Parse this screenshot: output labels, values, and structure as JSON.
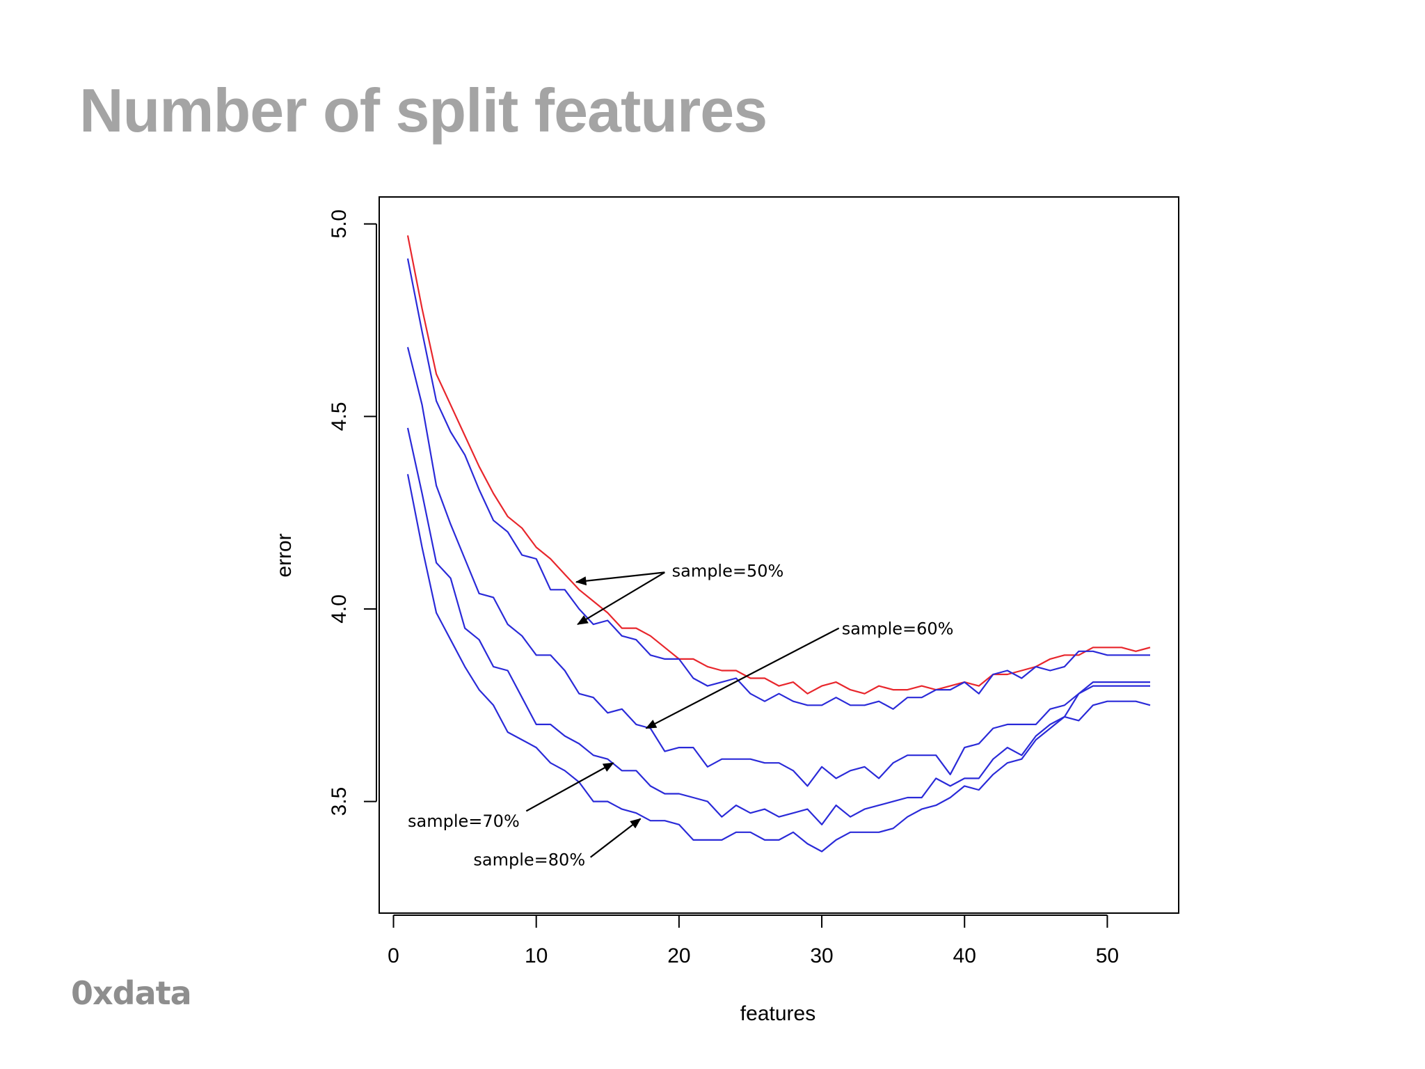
{
  "slide": {
    "title": "Number of split features",
    "logo_text": "0xdata"
  },
  "chart_data": {
    "type": "line",
    "xlabel": "features",
    "ylabel": "error",
    "xlim": [
      -1,
      55
    ],
    "ylim": [
      3.21,
      5.07
    ],
    "xticks": [
      0,
      10,
      20,
      30,
      40,
      50
    ],
    "yticks": [
      3.5,
      4.0,
      4.5,
      5.0
    ],
    "grid": false,
    "colors": {
      "highlight": "#e8262c",
      "series": "#2a2ad8",
      "axis": "#000000"
    },
    "x": [
      1,
      2,
      3,
      4,
      5,
      6,
      7,
      8,
      9,
      10,
      11,
      12,
      13,
      14,
      15,
      16,
      17,
      18,
      19,
      20,
      21,
      22,
      23,
      24,
      25,
      26,
      27,
      28,
      29,
      30,
      31,
      32,
      33,
      34,
      35,
      36,
      37,
      38,
      39,
      40,
      41,
      42,
      43,
      44,
      45,
      46,
      47,
      48,
      49,
      50,
      51,
      52,
      53
    ],
    "series": [
      {
        "color": "#e8262c",
        "values": [
          4.97,
          4.78,
          4.61,
          4.53,
          4.45,
          4.37,
          4.3,
          4.24,
          4.21,
          4.16,
          4.13,
          4.09,
          4.05,
          4.02,
          3.99,
          3.95,
          3.95,
          3.93,
          3.9,
          3.87,
          3.87,
          3.85,
          3.84,
          3.84,
          3.82,
          3.82,
          3.8,
          3.81,
          3.78,
          3.8,
          3.81,
          3.79,
          3.78,
          3.8,
          3.79,
          3.79,
          3.8,
          3.79,
          3.8,
          3.81,
          3.8,
          3.83,
          3.83,
          3.84,
          3.85,
          3.87,
          3.88,
          3.88,
          3.9,
          3.9,
          3.9,
          3.89,
          3.9
        ]
      },
      {
        "color": "#2a2ad8",
        "values": [
          4.91,
          4.72,
          4.54,
          4.46,
          4.4,
          4.31,
          4.23,
          4.2,
          4.14,
          4.13,
          4.05,
          4.05,
          4.0,
          3.96,
          3.97,
          3.93,
          3.92,
          3.88,
          3.87,
          3.87,
          3.82,
          3.8,
          3.81,
          3.82,
          3.78,
          3.76,
          3.78,
          3.76,
          3.75,
          3.75,
          3.77,
          3.75,
          3.75,
          3.76,
          3.74,
          3.77,
          3.77,
          3.79,
          3.79,
          3.81,
          3.78,
          3.83,
          3.84,
          3.82,
          3.85,
          3.84,
          3.85,
          3.89,
          3.89,
          3.88,
          3.88,
          3.88,
          3.88
        ]
      },
      {
        "color": "#2a2ad8",
        "values": [
          4.68,
          4.53,
          4.32,
          4.22,
          4.13,
          4.04,
          4.03,
          3.96,
          3.93,
          3.88,
          3.88,
          3.84,
          3.78,
          3.77,
          3.73,
          3.74,
          3.7,
          3.69,
          3.63,
          3.64,
          3.64,
          3.59,
          3.61,
          3.61,
          3.61,
          3.6,
          3.6,
          3.58,
          3.54,
          3.59,
          3.56,
          3.58,
          3.59,
          3.56,
          3.6,
          3.62,
          3.62,
          3.62,
          3.57,
          3.64,
          3.65,
          3.69,
          3.7,
          3.7,
          3.7,
          3.74,
          3.75,
          3.78,
          3.81,
          3.81,
          3.81,
          3.81,
          3.81
        ]
      },
      {
        "color": "#2a2ad8",
        "values": [
          4.47,
          4.3,
          4.12,
          4.08,
          3.95,
          3.92,
          3.85,
          3.84,
          3.77,
          3.7,
          3.7,
          3.67,
          3.65,
          3.62,
          3.61,
          3.58,
          3.58,
          3.54,
          3.52,
          3.52,
          3.51,
          3.5,
          3.46,
          3.49,
          3.47,
          3.48,
          3.46,
          3.47,
          3.48,
          3.44,
          3.49,
          3.46,
          3.48,
          3.49,
          3.5,
          3.51,
          3.51,
          3.56,
          3.54,
          3.56,
          3.56,
          3.61,
          3.64,
          3.62,
          3.67,
          3.7,
          3.72,
          3.78,
          3.8,
          3.8,
          3.8,
          3.8,
          3.8
        ]
      },
      {
        "color": "#2a2ad8",
        "values": [
          4.35,
          4.16,
          3.99,
          3.92,
          3.85,
          3.79,
          3.75,
          3.68,
          3.66,
          3.64,
          3.6,
          3.58,
          3.55,
          3.5,
          3.5,
          3.48,
          3.47,
          3.45,
          3.45,
          3.44,
          3.4,
          3.4,
          3.4,
          3.42,
          3.42,
          3.4,
          3.4,
          3.42,
          3.39,
          3.37,
          3.4,
          3.42,
          3.42,
          3.42,
          3.43,
          3.46,
          3.48,
          3.49,
          3.51,
          3.54,
          3.53,
          3.57,
          3.6,
          3.61,
          3.66,
          3.69,
          3.72,
          3.71,
          3.75,
          3.76,
          3.76,
          3.76,
          3.75
        ]
      }
    ],
    "annotations": [
      {
        "text": "sample=50%",
        "text_at": [
          19.5,
          4.1
        ],
        "anchor": "start",
        "arrows": [
          {
            "from": [
              19,
              4.095
            ],
            "to": [
              12.8,
              4.07
            ]
          },
          {
            "from": [
              19,
              4.095
            ],
            "to": [
              12.9,
              3.96
            ]
          }
        ]
      },
      {
        "text": "sample=60%",
        "text_at": [
          31.4,
          3.95
        ],
        "anchor": "start",
        "arrows": [
          {
            "from": [
              31.2,
              3.95
            ],
            "to": [
              17.7,
              3.69
            ]
          }
        ]
      },
      {
        "text": "sample=70%",
        "text_at": [
          1.0,
          3.45
        ],
        "anchor": "start",
        "arrows": [
          {
            "from": [
              9.3,
              3.475
            ],
            "to": [
              15.4,
              3.6
            ]
          }
        ]
      },
      {
        "text": "sample=80%",
        "text_at": [
          5.6,
          3.35
        ],
        "anchor": "start",
        "arrows": [
          {
            "from": [
              13.8,
              3.355
            ],
            "to": [
              17.3,
              3.455
            ]
          }
        ]
      }
    ]
  }
}
